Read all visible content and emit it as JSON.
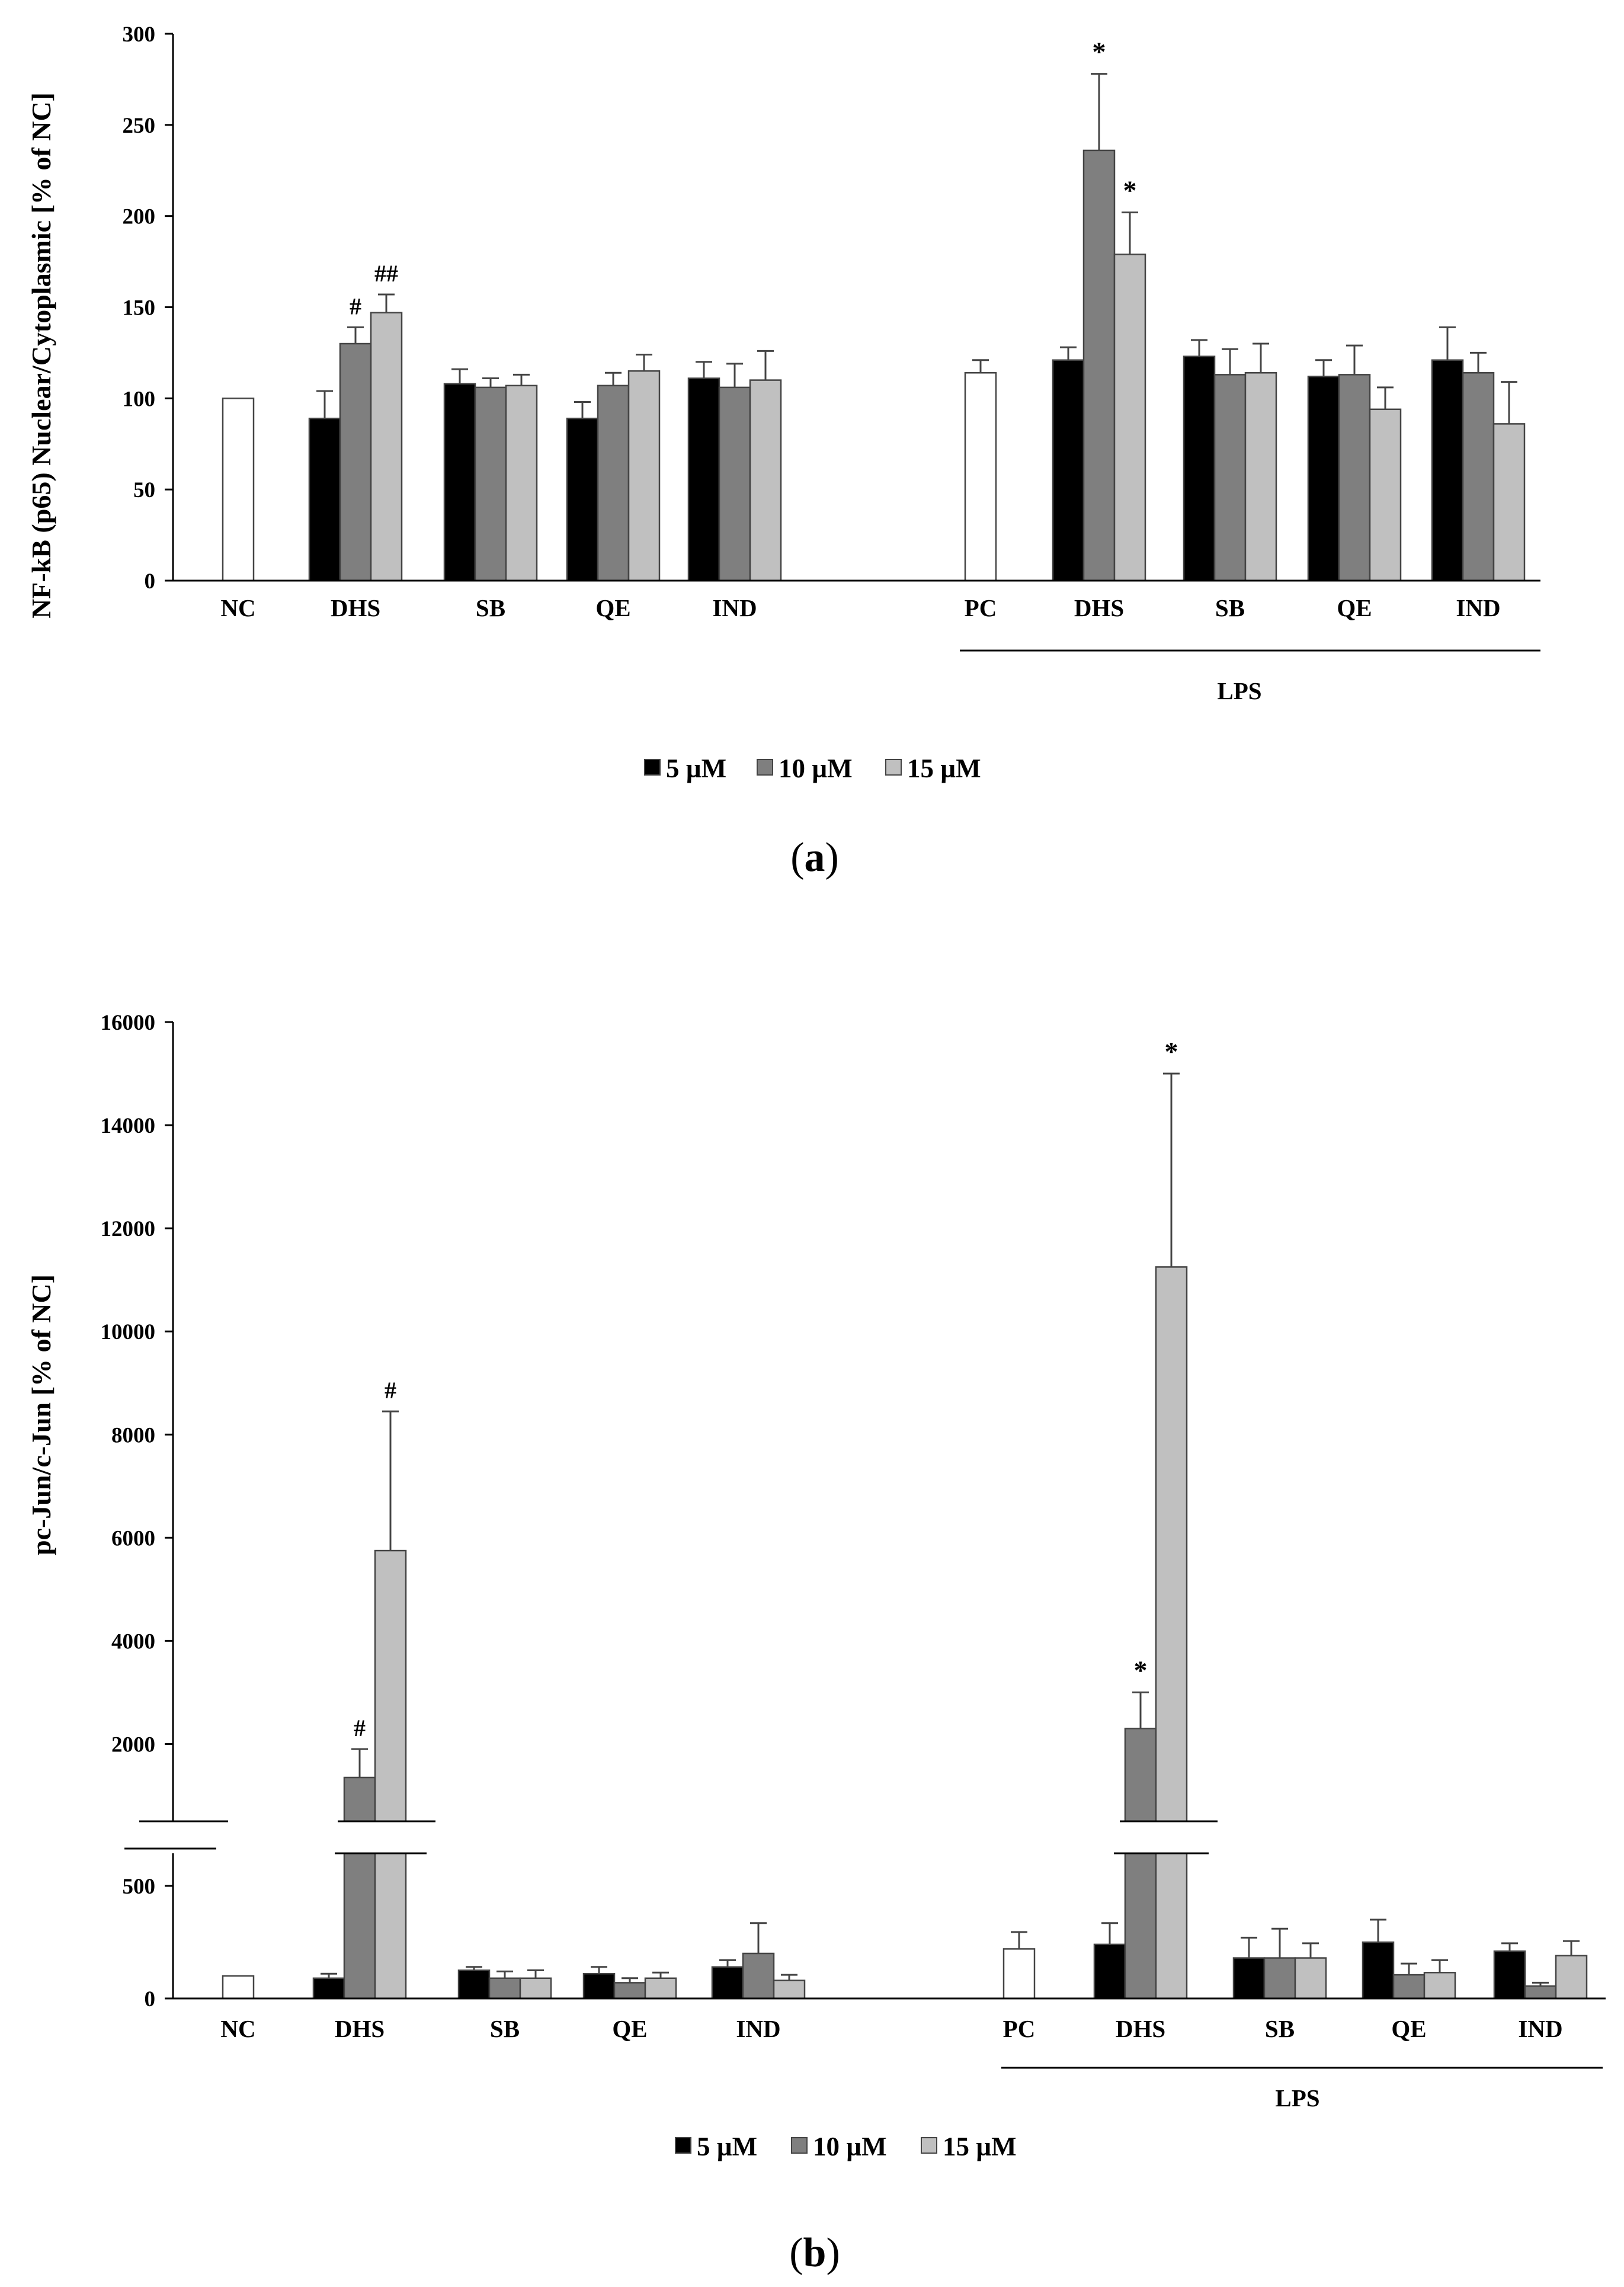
{
  "colors": {
    "dose_5": "#000000",
    "dose_10": "#7f7f7f",
    "dose_15": "#c0c0c0",
    "control": "#ffffff",
    "bar_stroke": "#444444"
  },
  "chart_data": [
    {
      "type": "bar",
      "panel": "a",
      "caption_letter": "a",
      "ylabel": "NF-kB (p65) Nuclear/Cytoplasmic [% of NC]",
      "ylim": [
        0,
        300
      ],
      "yticks": [
        "0",
        "50",
        "100",
        "150",
        "200",
        "250",
        "300"
      ],
      "group_label": "LPS",
      "legend": [
        "5 µM",
        "10 µM",
        "15 µM"
      ],
      "groups": [
        {
          "label": "NC",
          "bars": [
            {
              "value": 100,
              "err": 0,
              "dose": "control"
            }
          ]
        },
        {
          "label": "DHS",
          "bars": [
            {
              "value": 89,
              "err": 15,
              "dose": "dose_5"
            },
            {
              "value": 130,
              "err": 9,
              "dose": "dose_10",
              "mark": "#"
            },
            {
              "value": 147,
              "err": 10,
              "dose": "dose_15",
              "mark": "##"
            }
          ]
        },
        {
          "label": "SB",
          "bars": [
            {
              "value": 108,
              "err": 8,
              "dose": "dose_5"
            },
            {
              "value": 106,
              "err": 5,
              "dose": "dose_10"
            },
            {
              "value": 107,
              "err": 6,
              "dose": "dose_15"
            }
          ]
        },
        {
          "label": "QE",
          "bars": [
            {
              "value": 89,
              "err": 9,
              "dose": "dose_5"
            },
            {
              "value": 107,
              "err": 7,
              "dose": "dose_10"
            },
            {
              "value": 115,
              "err": 9,
              "dose": "dose_15"
            }
          ]
        },
        {
          "label": "IND",
          "bars": [
            {
              "value": 111,
              "err": 9,
              "dose": "dose_5"
            },
            {
              "value": 106,
              "err": 13,
              "dose": "dose_10"
            },
            {
              "value": 110,
              "err": 16,
              "dose": "dose_15"
            }
          ]
        },
        {
          "label": "PC",
          "bars": [
            {
              "value": 114,
              "err": 7,
              "dose": "control"
            }
          ]
        },
        {
          "label": "DHS",
          "bars": [
            {
              "value": 121,
              "err": 7,
              "dose": "dose_5"
            },
            {
              "value": 236,
              "err": 42,
              "dose": "dose_10",
              "mark": "*"
            },
            {
              "value": 179,
              "err": 23,
              "dose": "dose_15",
              "mark": "*"
            }
          ]
        },
        {
          "label": "SB",
          "bars": [
            {
              "value": 123,
              "err": 9,
              "dose": "dose_5"
            },
            {
              "value": 113,
              "err": 14,
              "dose": "dose_10"
            },
            {
              "value": 114,
              "err": 16,
              "dose": "dose_15"
            }
          ]
        },
        {
          "label": "QE",
          "bars": [
            {
              "value": 112,
              "err": 9,
              "dose": "dose_5"
            },
            {
              "value": 113,
              "err": 16,
              "dose": "dose_10"
            },
            {
              "value": 94,
              "err": 12,
              "dose": "dose_15"
            }
          ]
        },
        {
          "label": "IND",
          "bars": [
            {
              "value": 121,
              "err": 18,
              "dose": "dose_5"
            },
            {
              "value": 114,
              "err": 11,
              "dose": "dose_10"
            },
            {
              "value": 86,
              "err": 23,
              "dose": "dose_15"
            }
          ]
        }
      ]
    },
    {
      "type": "bar",
      "panel": "b",
      "caption_letter": "b",
      "ylabel": "pc-Jun/c-Jun [%  of NC]",
      "y_axis_break": true,
      "ylim_lower": [
        0,
        700
      ],
      "ylim_upper": [
        500,
        16000
      ],
      "yticks_lower": [
        "0",
        "500"
      ],
      "yticks_upper": [
        "2000",
        "4000",
        "6000",
        "8000",
        "10000",
        "12000",
        "14000",
        "16000"
      ],
      "group_label": "LPS",
      "legend": [
        "5 µM",
        "10 µM",
        "15 µM"
      ],
      "groups": [
        {
          "label": "NC",
          "bars": [
            {
              "value": 100,
              "err": 0,
              "dose": "control"
            }
          ]
        },
        {
          "label": "DHS",
          "bars": [
            {
              "value": 90,
              "err": 20,
              "dose": "dose_5"
            },
            {
              "value": 1350,
              "err": 550,
              "dose": "dose_10",
              "mark": "#"
            },
            {
              "value": 5750,
              "err": 2700,
              "dose": "dose_15",
              "mark": "#"
            }
          ]
        },
        {
          "label": "SB",
          "bars": [
            {
              "value": 125,
              "err": 15,
              "dose": "dose_5"
            },
            {
              "value": 90,
              "err": 30,
              "dose": "dose_10"
            },
            {
              "value": 90,
              "err": 35,
              "dose": "dose_15"
            }
          ]
        },
        {
          "label": "QE",
          "bars": [
            {
              "value": 110,
              "err": 30,
              "dose": "dose_5"
            },
            {
              "value": 70,
              "err": 20,
              "dose": "dose_10"
            },
            {
              "value": 90,
              "err": 25,
              "dose": "dose_15"
            }
          ]
        },
        {
          "label": "IND",
          "bars": [
            {
              "value": 140,
              "err": 30,
              "dose": "dose_5"
            },
            {
              "value": 200,
              "err": 135,
              "dose": "dose_10"
            },
            {
              "value": 80,
              "err": 25,
              "dose": "dose_15"
            }
          ]
        },
        {
          "label": "PC",
          "bars": [
            {
              "value": 220,
              "err": 75,
              "dose": "control"
            }
          ]
        },
        {
          "label": "DHS",
          "bars": [
            {
              "value": 240,
              "err": 95,
              "dose": "dose_5"
            },
            {
              "value": 2300,
              "err": 700,
              "dose": "dose_10",
              "mark": "*"
            },
            {
              "value": 11250,
              "err": 3750,
              "dose": "dose_15",
              "mark": "*"
            }
          ]
        },
        {
          "label": "SB",
          "bars": [
            {
              "value": 180,
              "err": 90,
              "dose": "dose_5"
            },
            {
              "value": 180,
              "err": 130,
              "dose": "dose_10"
            },
            {
              "value": 180,
              "err": 65,
              "dose": "dose_15"
            }
          ]
        },
        {
          "label": "QE",
          "bars": [
            {
              "value": 250,
              "err": 100,
              "dose": "dose_5"
            },
            {
              "value": 105,
              "err": 50,
              "dose": "dose_10"
            },
            {
              "value": 115,
              "err": 55,
              "dose": "dose_15"
            }
          ]
        },
        {
          "label": "IND",
          "bars": [
            {
              "value": 210,
              "err": 35,
              "dose": "dose_5"
            },
            {
              "value": 55,
              "err": 15,
              "dose": "dose_10"
            },
            {
              "value": 190,
              "err": 65,
              "dose": "dose_15"
            }
          ]
        }
      ]
    }
  ]
}
